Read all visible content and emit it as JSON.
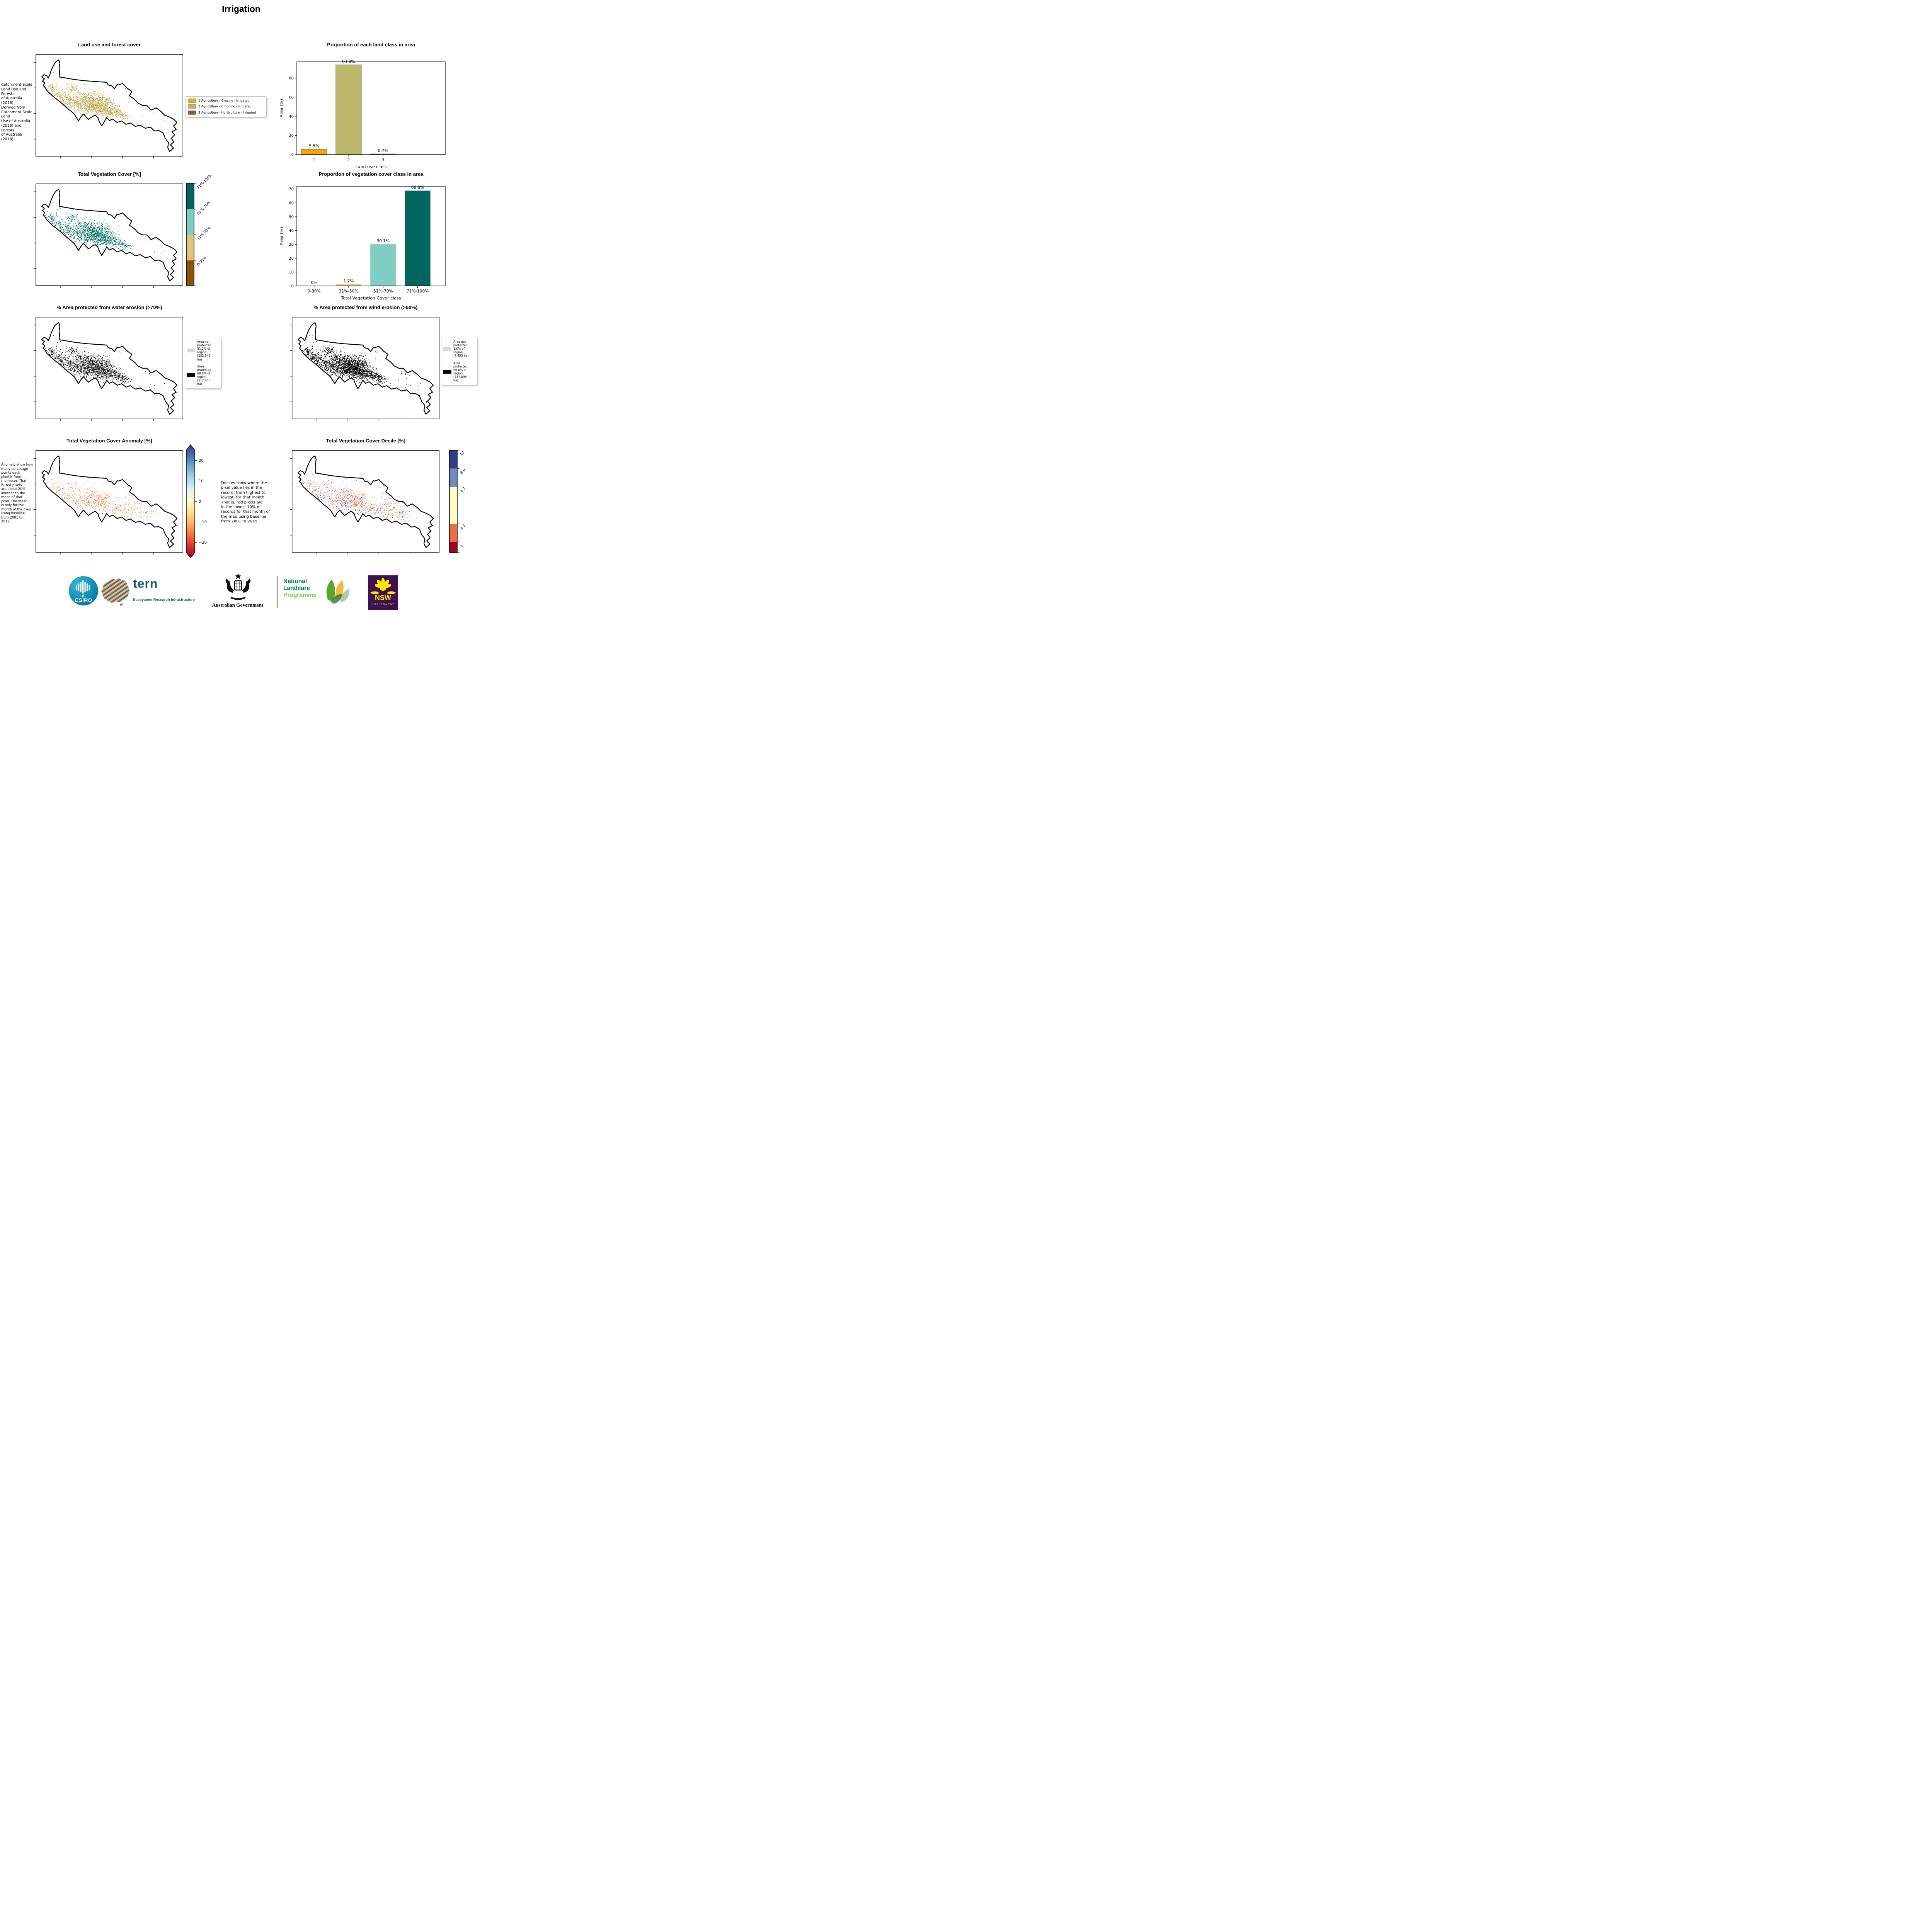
{
  "page_title": "Irrigation",
  "maps": {
    "land_use": {
      "title": "Land use and forest cover",
      "note": "Catchment Scale\nLand Use and Forests\nof Australia (2018)\nDerived from\nCatchment Scale Land\nUse of Australia\n(2018) and Forests\nof Australia (2018)",
      "legend": [
        {
          "label": "1 Agriculture - Grazing - Irrigated",
          "color": "#FFA500"
        },
        {
          "label": "2 Agriculture - Cropping - Irrigated",
          "color": "#BDB76B"
        },
        {
          "label": "3 Agriculture - Horticulture - Irrigated",
          "color": "#A0522D"
        }
      ],
      "palette": [
        [
          "#BDB76B",
          0.8
        ],
        [
          "#FFA500",
          0.14
        ],
        [
          "#A0522D",
          0.06
        ]
      ]
    },
    "veg_cover": {
      "title": "Total Vegetation Cover [%]",
      "palette": [
        [
          "#01665E",
          0.66
        ],
        [
          "#80CDC1",
          0.28
        ],
        [
          "#DFC27D",
          0.06
        ]
      ],
      "colorbar": {
        "segments": [
          {
            "label": "71%-100%",
            "color": "#01665E"
          },
          {
            "label": "51%-70%",
            "color": "#80CDC1"
          },
          {
            "label": "31%-50%",
            "color": "#DFC27D"
          },
          {
            "label": "0-30%",
            "color": "#8C510A"
          }
        ]
      }
    },
    "water": {
      "title": "% Area protected from water erosion (>70%)",
      "palette": [
        [
          "#000000",
          0.64
        ],
        [
          "#ABABAB",
          0.36
        ]
      ],
      "legend": [
        {
          "swatch": "#D9D9D9",
          "label": "Area not\nprotected\n31.2% of\nregion\n(232,549\nha)"
        },
        {
          "swatch": "#000000",
          "label": "Area\nprotected\n68.8% of\nregion\n(512,800\nha)"
        }
      ]
    },
    "wind": {
      "title": "% Area protected from wind erosion (>50%)",
      "palette": [
        [
          "#000000",
          0.93
        ],
        [
          "#C8C8C8",
          0.07
        ]
      ],
      "legend": [
        {
          "swatch": "#D9D9D9",
          "label": "Area not\nprotected\n1.0% of\nregion\n(7,453 ha)"
        },
        {
          "swatch": "#000000",
          "label": "Area\nprotected\n99.0% of\nregion\n(737,896\nha)"
        }
      ]
    },
    "anomaly": {
      "title": "Total Vegetation Cover Anomaly [%]",
      "note": "Anomaly show how\nmany percetage\npoints each\npixel is from\nthe mean. That\nis, red pixels\nare about 20%\nlower than the\nmean of that\npixel. The mean\nis only for the\nmonth of the map\nusing baseline\nfrom 2001 to\n2019.",
      "palette": [
        [
          "#F46D43",
          0.3
        ],
        [
          "#FDAE61",
          0.26
        ],
        [
          "#FEE090",
          0.16
        ],
        [
          "#D73027",
          0.1
        ],
        [
          "#ABD9E9",
          0.1
        ],
        [
          "#74ADD1",
          0.08
        ]
      ],
      "gradient": [
        "#A50026",
        "#D73027",
        "#F46D43",
        "#FDAE61",
        "#FEE090",
        "#FFFFBF",
        "#E0F3F8",
        "#ABD9E9",
        "#74ADD1",
        "#4575B4",
        "#313695"
      ],
      "colorbar_ticks": [
        "20",
        "10",
        "0",
        "−10",
        "−20"
      ]
    },
    "decile": {
      "title": "Total Vegetation Cover Decile [%]",
      "note": "Deciles show where the\npixel value lies in the\nrecord, from highest to\nlowest, for that month.\nThat is, red pixels are\nin the lowest 10% of\nrecords for that month of\nthe map using baseline\nfrom 2001 to 2019.",
      "palette": [
        [
          "#D73027",
          0.2
        ],
        [
          "#F46D43",
          0.18
        ],
        [
          "#FDAE61",
          0.12
        ],
        [
          "#FFFFBF",
          0.12
        ],
        [
          "#6E8BC0",
          0.2
        ],
        [
          "#2E3E8F",
          0.12
        ],
        [
          "#C0C0C0",
          0.06
        ]
      ],
      "colorbar": {
        "segments": [
          {
            "label": "10",
            "color": "#2E3E8F",
            "frac": 0.18
          },
          {
            "label": "8-9",
            "color": "#6E8BC0",
            "frac": 0.18
          },
          {
            "label": "4-7",
            "color": "#FFFFBF",
            "frac": 0.36
          },
          {
            "label": "2-3",
            "color": "#EA6E43",
            "frac": 0.175
          },
          {
            "label": "1",
            "color": "#A50026",
            "frac": 0.105
          }
        ]
      }
    }
  },
  "chart_data": [
    {
      "type": "bar",
      "title": "Proportion of each land class in area",
      "categories": [
        "1",
        "2",
        "3"
      ],
      "values": [
        5.5,
        93.8,
        0.7
      ],
      "bar_labels": [
        "5.5%",
        "93.8%",
        "0.7%"
      ],
      "colors": [
        "#FFA500",
        "#BDB76B",
        "#A0522D"
      ],
      "bar_edge": "#808080",
      "xlabel": "Land use class",
      "ylabel": "Area (%)",
      "ylim": [
        0,
        97
      ],
      "yticks": [
        0,
        20,
        40,
        60,
        80
      ],
      "x_extra_slots": 1.3,
      "grid": false,
      "legend_position": "none"
    },
    {
      "type": "bar",
      "title": "Proportion of vegetation cover class in area",
      "categories": [
        "0-30%",
        "31%-50%",
        "51%-70%",
        "71%-100%"
      ],
      "values": [
        0,
        1.2,
        30.1,
        68.8
      ],
      "bar_labels": [
        "0%",
        "1.2%",
        "30.1%",
        "68.8%"
      ],
      "colors": [
        "#DFC27D",
        "#DFC27D",
        "#80CDC1",
        "#01665E"
      ],
      "bar_edge": "none",
      "xlabel": "Total Vegetation Cover class",
      "ylabel": "Area (%)",
      "ylim": [
        0,
        72
      ],
      "yticks": [
        0,
        10,
        20,
        30,
        40,
        50,
        60,
        70
      ],
      "x_extra_slots": 0.3,
      "grid": false,
      "legend_position": "none"
    }
  ],
  "footer": {
    "csiro_label": "CSIRO",
    "tern_label": "tern",
    "tern_sub": "Ecosystem Research Infrastructure",
    "aus_gov": "Australian Government",
    "landcare_line1": "National",
    "landcare_line2": "Landcare",
    "landcare_line3": "Programme",
    "nsw": "NSW",
    "nsw_sub": "GOVERNMENT"
  }
}
